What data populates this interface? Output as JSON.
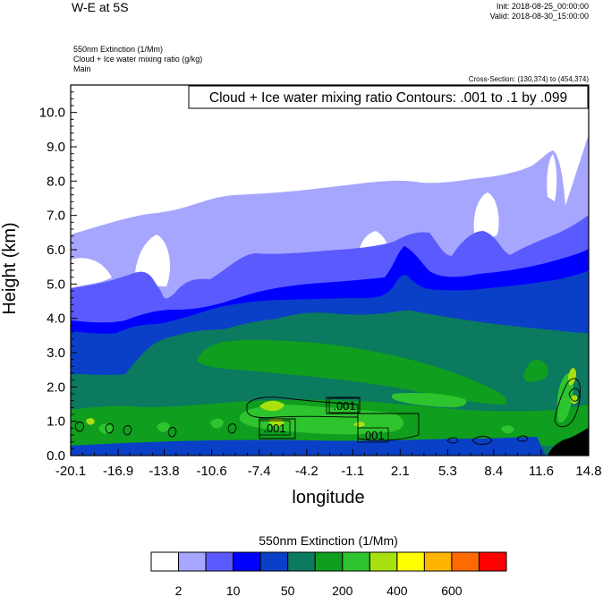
{
  "header": {
    "title": "W-E at 5S",
    "init": "Init: 2018-08-25_00:00:00",
    "valid": "Valid: 2018-08-30_15:00:00",
    "fields": [
      "550nm Extinction   (1/Mm)",
      "Cloud + Ice water mixing ratio   (g/kg)",
      "Main"
    ],
    "cross_section": "Cross-Section: (130,374) to (454,374)"
  },
  "chart_data": {
    "type": "heatmap",
    "title": "",
    "contour_info": "Cloud + Ice water mixing ratio Contours: .001 to .1 by .099",
    "xlabel": "longitude",
    "ylabel": "Height (km)",
    "xlim": [
      -20.1,
      14.8
    ],
    "ylim": [
      0.0,
      10.8
    ],
    "x_ticks": [
      "-20.1",
      "-16.9",
      "-13.8",
      "-10.6",
      "-7.4",
      "-4.2",
      "-1.1",
      "2.1",
      "5.3",
      "8.4",
      "11.6",
      "14.8"
    ],
    "y_ticks": [
      "0.0",
      "1.0",
      "2.0",
      "3.0",
      "4.0",
      "5.0",
      "6.0",
      "7.0",
      "8.0",
      "9.0",
      "10.0"
    ],
    "contour_labels": [
      ".001",
      ".001",
      ".001"
    ],
    "colorbar": {
      "title": "550nm Extinction  (1/Mm)",
      "labels": [
        "2",
        "10",
        "50",
        "200",
        "400",
        "600"
      ],
      "colors": [
        "#ffffff",
        "#a6a6ff",
        "#5a5aff",
        "#0000ff",
        "#0a3fc8",
        "#0b7a5e",
        "#0f9e1e",
        "#2ec42e",
        "#a8e010",
        "#ffff00",
        "#ffb400",
        "#ff6a00",
        "#ff0000"
      ]
    },
    "bands": [
      {
        "name": "white",
        "color": "#ffffff"
      },
      {
        "name": "light",
        "color": "#a6a6ff"
      },
      {
        "name": "medium",
        "color": "#5a5aff"
      },
      {
        "name": "blue",
        "color": "#0000ff"
      },
      {
        "name": "darkblue",
        "color": "#0a3fc8"
      },
      {
        "name": "teal",
        "color": "#0b7a5e"
      },
      {
        "name": "green",
        "color": "#0f9e1e"
      },
      {
        "name": "lightgreen",
        "color": "#2ec42e"
      },
      {
        "name": "lime",
        "color": "#a8e010"
      },
      {
        "name": "black",
        "color": "#000000"
      }
    ]
  }
}
